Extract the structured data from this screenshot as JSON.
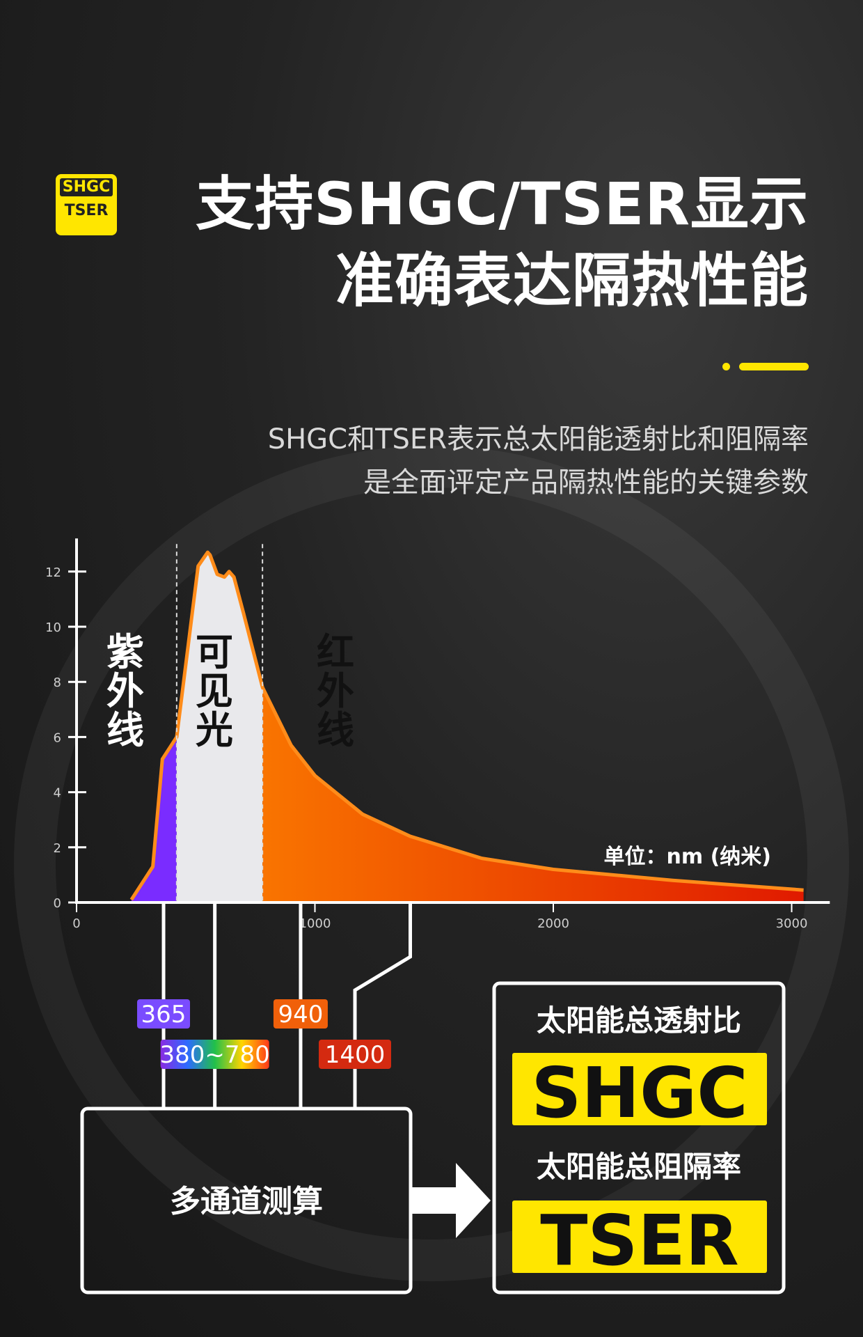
{
  "badge": {
    "line1": "SHGC",
    "line2": "TSER"
  },
  "title": {
    "line1": "支持SHGC/TSER显示",
    "line2": "准确表达隔热性能"
  },
  "subtitle": {
    "line1": "SHGC和TSER表示总太阳能透射比和阻隔率",
    "line2": "是全面评定产品隔热性能的关键参数"
  },
  "colors": {
    "accent": "#ffe600",
    "uv": "#7a2cff",
    "visible": "#e9e9ec",
    "ir_start": "#ff8a00",
    "ir_end": "#e01a00",
    "curve": "#ff8c1a"
  },
  "chart_data": {
    "type": "area",
    "xlim": [
      0,
      3050
    ],
    "ylim": [
      0,
      13
    ],
    "x_ticks": [
      0,
      1000,
      2000,
      3000
    ],
    "y_ticks": [
      0,
      2,
      4,
      6,
      8,
      10,
      12
    ],
    "unit_label": "单位：nm (纳米)",
    "x": [
      230,
      320,
      360,
      420,
      510,
      550,
      560,
      590,
      620,
      640,
      660,
      700,
      780,
      900,
      1000,
      1200,
      1400,
      1700,
      2000,
      2500,
      3050
    ],
    "y": [
      0.1,
      1.3,
      5.2,
      6.0,
      12.2,
      12.7,
      12.6,
      11.9,
      11.8,
      12.0,
      11.8,
      10.5,
      7.8,
      5.7,
      4.6,
      3.2,
      2.4,
      1.6,
      1.2,
      0.8,
      0.45
    ],
    "regions": [
      {
        "name": "紫外线",
        "from": 230,
        "to": 420
      },
      {
        "name": "可见光",
        "from": 420,
        "to": 780
      },
      {
        "name": "红外线",
        "from": 780,
        "to": 3050
      }
    ]
  },
  "channels": [
    {
      "label": "365",
      "wavelength": 365,
      "color": "#7a4cff"
    },
    {
      "label": "380~780",
      "wavelength": 580,
      "color": "rainbow"
    },
    {
      "label": "940",
      "wavelength": 940,
      "color": "#f0600a"
    },
    {
      "label": "1400",
      "wavelength": 1400,
      "color": "#d42a10"
    }
  ],
  "calc_box": {
    "label": "多通道测算"
  },
  "results": [
    {
      "caption": "太阳能总透射比",
      "value": "SHGC"
    },
    {
      "caption": "太阳能总阻隔率",
      "value": "TSER"
    }
  ]
}
